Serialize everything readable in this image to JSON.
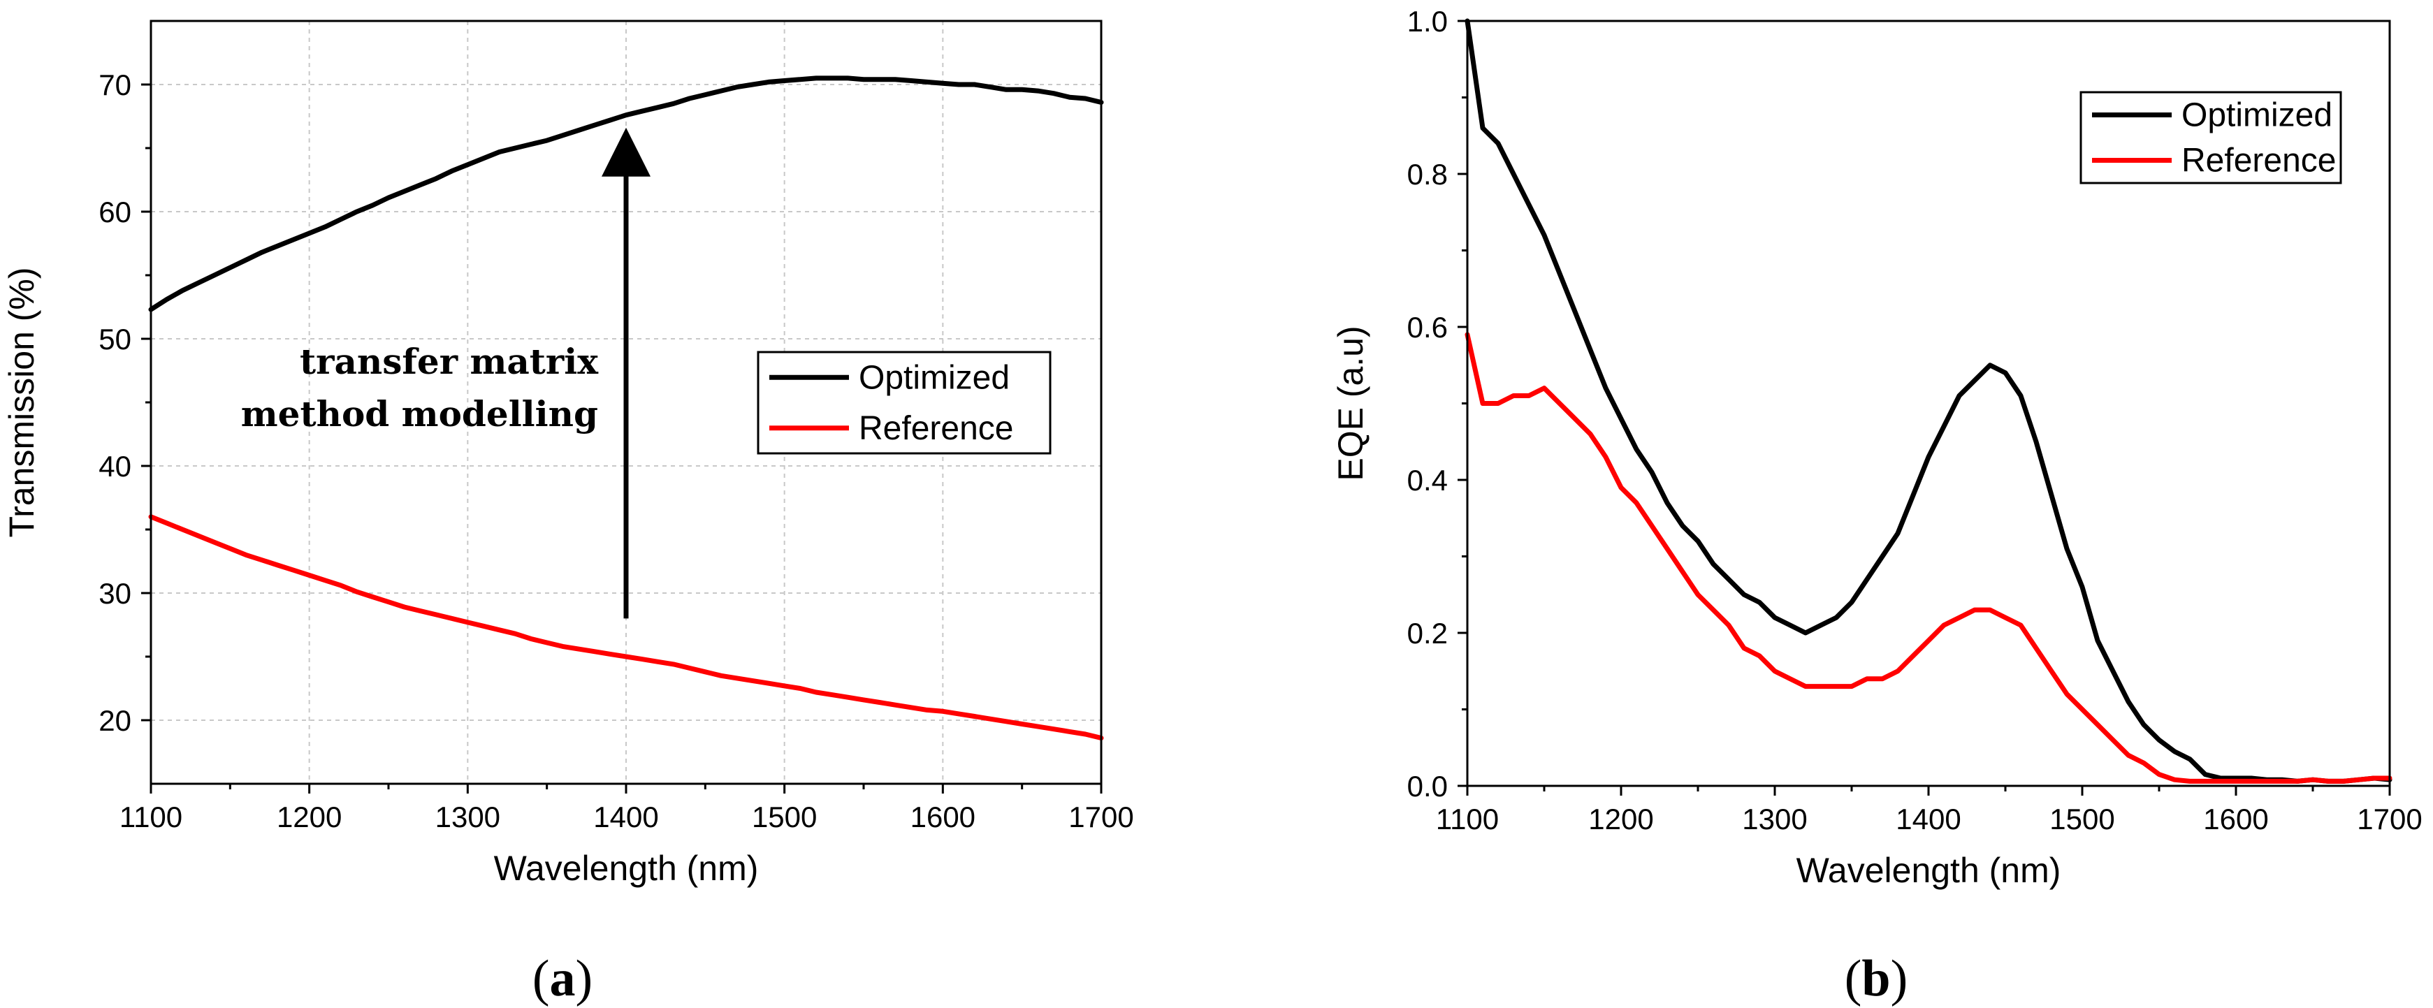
{
  "panels": [
    {
      "prefix": "(",
      "letter": "a",
      "suffix": ")"
    },
    {
      "prefix": "(",
      "letter": "b",
      "suffix": ")"
    }
  ],
  "chart_data": [
    {
      "type": "line",
      "title": "",
      "xlabel": "Wavelength (nm)",
      "ylabel": "Transmission (%)",
      "xlim": [
        1100,
        1700
      ],
      "ylim": [
        15,
        75
      ],
      "xticks": [
        1100,
        1200,
        1300,
        1400,
        1500,
        1600,
        1700
      ],
      "yticks": [
        20,
        30,
        40,
        50,
        60,
        70
      ],
      "grid": true,
      "legend": "center-right",
      "annotation": {
        "lines": [
          "transfer matrix",
          "method modelling"
        ],
        "arrow_x": 1400,
        "arrow_from_y": 28,
        "arrow_to_y": 66
      },
      "series": [
        {
          "name": "Optimized",
          "color": "#000000",
          "x": [
            1100,
            1110,
            1120,
            1130,
            1140,
            1150,
            1160,
            1170,
            1180,
            1190,
            1200,
            1210,
            1220,
            1230,
            1240,
            1250,
            1260,
            1270,
            1280,
            1290,
            1300,
            1310,
            1320,
            1330,
            1340,
            1350,
            1360,
            1370,
            1380,
            1390,
            1400,
            1410,
            1420,
            1430,
            1440,
            1450,
            1460,
            1470,
            1480,
            1490,
            1500,
            1510,
            1520,
            1530,
            1540,
            1550,
            1560,
            1570,
            1580,
            1590,
            1600,
            1610,
            1620,
            1630,
            1640,
            1650,
            1660,
            1670,
            1680,
            1690,
            1700
          ],
          "values": [
            52.3,
            53.1,
            53.8,
            54.4,
            55.0,
            55.6,
            56.2,
            56.8,
            57.3,
            57.8,
            58.3,
            58.8,
            59.4,
            60.0,
            60.5,
            61.1,
            61.6,
            62.1,
            62.6,
            63.2,
            63.7,
            64.2,
            64.7,
            65.0,
            65.3,
            65.6,
            66.0,
            66.4,
            66.8,
            67.2,
            67.6,
            67.9,
            68.2,
            68.5,
            68.9,
            69.2,
            69.5,
            69.8,
            70.0,
            70.2,
            70.3,
            70.4,
            70.5,
            70.5,
            70.5,
            70.4,
            70.4,
            70.4,
            70.3,
            70.2,
            70.1,
            70.0,
            70.0,
            69.8,
            69.6,
            69.6,
            69.5,
            69.3,
            69.0,
            68.9,
            68.6
          ]
        },
        {
          "name": "Reference",
          "color": "#ff0000",
          "x": [
            1100,
            1110,
            1120,
            1130,
            1140,
            1150,
            1160,
            1170,
            1180,
            1190,
            1200,
            1210,
            1220,
            1230,
            1240,
            1250,
            1260,
            1270,
            1280,
            1290,
            1300,
            1310,
            1320,
            1330,
            1340,
            1350,
            1360,
            1370,
            1380,
            1390,
            1400,
            1410,
            1420,
            1430,
            1440,
            1450,
            1460,
            1470,
            1480,
            1490,
            1500,
            1510,
            1520,
            1530,
            1540,
            1550,
            1560,
            1570,
            1580,
            1590,
            1600,
            1610,
            1620,
            1630,
            1640,
            1650,
            1660,
            1670,
            1680,
            1690,
            1700
          ],
          "values": [
            36.0,
            35.5,
            35.0,
            34.5,
            34.0,
            33.5,
            33.0,
            32.6,
            32.2,
            31.8,
            31.4,
            31.0,
            30.6,
            30.1,
            29.7,
            29.3,
            28.9,
            28.6,
            28.3,
            28.0,
            27.7,
            27.4,
            27.1,
            26.8,
            26.4,
            26.1,
            25.8,
            25.6,
            25.4,
            25.2,
            25.0,
            24.8,
            24.6,
            24.4,
            24.1,
            23.8,
            23.5,
            23.3,
            23.1,
            22.9,
            22.7,
            22.5,
            22.2,
            22.0,
            21.8,
            21.6,
            21.4,
            21.2,
            21.0,
            20.8,
            20.7,
            20.5,
            20.3,
            20.1,
            19.9,
            19.7,
            19.5,
            19.3,
            19.1,
            18.9,
            18.6
          ]
        }
      ]
    },
    {
      "type": "line",
      "title": "",
      "xlabel": "Wavelength (nm)",
      "ylabel": "EQE (a.u)",
      "xlim": [
        1100,
        1700
      ],
      "ylim": [
        0,
        1.0
      ],
      "xticks": [
        1100,
        1200,
        1300,
        1400,
        1500,
        1600,
        1700
      ],
      "yticks": [
        0.0,
        0.2,
        0.4,
        0.6,
        0.8,
        1.0
      ],
      "ytick_labels": [
        "0.0",
        "0.2",
        "0.4",
        "0.6",
        "0.8",
        "1.0"
      ],
      "grid": false,
      "legend": "top-right",
      "series": [
        {
          "name": "Optimized",
          "color": "#000000",
          "x": [
            1100,
            1110,
            1120,
            1130,
            1140,
            1150,
            1160,
            1170,
            1180,
            1190,
            1200,
            1210,
            1220,
            1230,
            1240,
            1250,
            1260,
            1270,
            1280,
            1290,
            1300,
            1310,
            1320,
            1330,
            1340,
            1350,
            1360,
            1370,
            1380,
            1390,
            1400,
            1410,
            1420,
            1430,
            1440,
            1450,
            1460,
            1470,
            1480,
            1490,
            1500,
            1510,
            1520,
            1530,
            1540,
            1550,
            1560,
            1570,
            1580,
            1590,
            1600,
            1610,
            1620,
            1630,
            1640,
            1650,
            1660,
            1670,
            1680,
            1690,
            1700
          ],
          "values": [
            1.0,
            0.86,
            0.84,
            0.8,
            0.76,
            0.72,
            0.67,
            0.62,
            0.57,
            0.52,
            0.48,
            0.44,
            0.41,
            0.37,
            0.34,
            0.32,
            0.29,
            0.27,
            0.25,
            0.24,
            0.22,
            0.21,
            0.2,
            0.21,
            0.22,
            0.24,
            0.27,
            0.3,
            0.33,
            0.38,
            0.43,
            0.47,
            0.51,
            0.53,
            0.55,
            0.54,
            0.51,
            0.45,
            0.38,
            0.31,
            0.26,
            0.19,
            0.15,
            0.11,
            0.08,
            0.06,
            0.045,
            0.035,
            0.015,
            0.01,
            0.01,
            0.01,
            0.008,
            0.008,
            0.006,
            0.008,
            0.006,
            0.006,
            0.008,
            0.01,
            0.008
          ]
        },
        {
          "name": "Reference",
          "color": "#ff0000",
          "x": [
            1100,
            1110,
            1120,
            1130,
            1140,
            1150,
            1160,
            1170,
            1180,
            1190,
            1200,
            1210,
            1220,
            1230,
            1240,
            1250,
            1260,
            1270,
            1280,
            1290,
            1300,
            1310,
            1320,
            1330,
            1340,
            1350,
            1360,
            1370,
            1380,
            1390,
            1400,
            1410,
            1420,
            1430,
            1440,
            1450,
            1460,
            1470,
            1480,
            1490,
            1500,
            1510,
            1520,
            1530,
            1540,
            1550,
            1560,
            1570,
            1580,
            1590,
            1600,
            1610,
            1620,
            1630,
            1640,
            1650,
            1660,
            1670,
            1680,
            1690,
            1700
          ],
          "values": [
            0.59,
            0.5,
            0.5,
            0.51,
            0.51,
            0.52,
            0.5,
            0.48,
            0.46,
            0.43,
            0.39,
            0.37,
            0.34,
            0.31,
            0.28,
            0.25,
            0.23,
            0.21,
            0.18,
            0.17,
            0.15,
            0.14,
            0.13,
            0.13,
            0.13,
            0.13,
            0.14,
            0.14,
            0.15,
            0.17,
            0.19,
            0.21,
            0.22,
            0.23,
            0.23,
            0.22,
            0.21,
            0.18,
            0.15,
            0.12,
            0.1,
            0.08,
            0.06,
            0.04,
            0.03,
            0.015,
            0.008,
            0.006,
            0.006,
            0.006,
            0.006,
            0.006,
            0.006,
            0.006,
            0.006,
            0.008,
            0.006,
            0.006,
            0.008,
            0.01,
            0.01
          ]
        }
      ]
    }
  ]
}
